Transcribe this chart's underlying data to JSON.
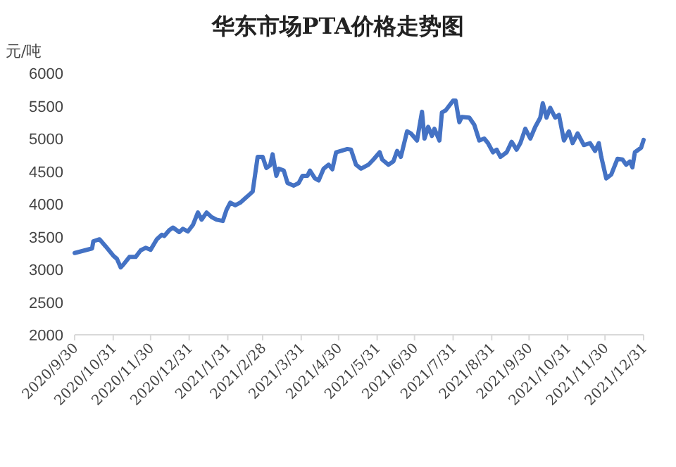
{
  "chart_data": {
    "type": "line",
    "title": "华东市场PTA价格走势图",
    "ylabel": "元/吨",
    "x": [
      "2020-09-30",
      "2020-10-14",
      "2020-10-15",
      "2020-10-20",
      "2020-10-25",
      "2020-10-31",
      "2020-11-03",
      "2020-11-06",
      "2020-11-08",
      "2020-11-13",
      "2020-11-18",
      "2020-11-22",
      "2020-11-26",
      "2020-11-30",
      "2020-12-05",
      "2020-12-09",
      "2020-12-11",
      "2020-12-15",
      "2020-12-18",
      "2020-12-23",
      "2020-12-26",
      "2020-12-30",
      "2021-01-03",
      "2021-01-07",
      "2021-01-10",
      "2021-01-14",
      "2021-01-18",
      "2021-01-22",
      "2021-01-27",
      "2021-01-30",
      "2021-02-02",
      "2021-02-06",
      "2021-02-10",
      "2021-02-16",
      "2021-02-20",
      "2021-02-24",
      "2021-02-28",
      "2021-03-03",
      "2021-03-06",
      "2021-03-08",
      "2021-03-11",
      "2021-03-13",
      "2021-03-17",
      "2021-03-20",
      "2021-03-25",
      "2021-03-29",
      "2021-04-01",
      "2021-04-05",
      "2021-04-07",
      "2021-04-11",
      "2021-04-14",
      "2021-04-18",
      "2021-04-22",
      "2021-04-25",
      "2021-04-28",
      "2021-05-07",
      "2021-05-10",
      "2021-05-14",
      "2021-05-18",
      "2021-05-24",
      "2021-05-28",
      "2021-06-02",
      "2021-06-04",
      "2021-06-09",
      "2021-06-13",
      "2021-06-16",
      "2021-06-19",
      "2021-06-24",
      "2021-06-27",
      "2021-07-02",
      "2021-07-06",
      "2021-07-08",
      "2021-07-11",
      "2021-07-14",
      "2021-07-16",
      "2021-07-20",
      "2021-07-22",
      "2021-07-25",
      "2021-07-31",
      "2021-08-02",
      "2021-08-05",
      "2021-08-07",
      "2021-08-13",
      "2021-08-17",
      "2021-08-21",
      "2021-08-25",
      "2021-08-28",
      "2021-09-01",
      "2021-09-04",
      "2021-09-07",
      "2021-09-12",
      "2021-09-16",
      "2021-09-20",
      "2021-09-23",
      "2021-09-27",
      "2021-10-01",
      "2021-10-05",
      "2021-10-09",
      "2021-10-11",
      "2021-10-14",
      "2021-10-17",
      "2021-10-21",
      "2021-10-24",
      "2021-10-28",
      "2021-11-01",
      "2021-11-04",
      "2021-11-08",
      "2021-11-13",
      "2021-11-18",
      "2021-11-22",
      "2021-11-25",
      "2021-11-27",
      "2021-12-01",
      "2021-12-05",
      "2021-12-10",
      "2021-12-14",
      "2021-12-17",
      "2021-12-20",
      "2021-12-22",
      "2021-12-24",
      "2021-12-29",
      "2021-12-31"
    ],
    "series": [
      {
        "color": "#4472c4",
        "values": [
          3250,
          3320,
          3430,
          3460,
          3350,
          3210,
          3160,
          3030,
          3070,
          3190,
          3190,
          3290,
          3330,
          3300,
          3460,
          3530,
          3510,
          3600,
          3640,
          3570,
          3620,
          3580,
          3680,
          3870,
          3760,
          3870,
          3800,
          3760,
          3740,
          3910,
          4020,
          3980,
          4020,
          4120,
          4190,
          4720,
          4720,
          4550,
          4590,
          4760,
          4430,
          4540,
          4510,
          4320,
          4280,
          4320,
          4430,
          4430,
          4510,
          4390,
          4360,
          4540,
          4600,
          4530,
          4790,
          4840,
          4830,
          4600,
          4540,
          4600,
          4680,
          4790,
          4680,
          4600,
          4650,
          4810,
          4720,
          5110,
          5080,
          4970,
          5410,
          5000,
          5180,
          5040,
          5150,
          4970,
          5400,
          5430,
          5580,
          5580,
          5250,
          5330,
          5320,
          5210,
          4970,
          5000,
          4930,
          4790,
          4830,
          4720,
          4790,
          4950,
          4830,
          4930,
          5150,
          5000,
          5180,
          5320,
          5540,
          5320,
          5470,
          5320,
          5360,
          4970,
          5110,
          4930,
          5080,
          4900,
          4930,
          4810,
          4930,
          4720,
          4390,
          4450,
          4690,
          4680,
          4600,
          4650,
          4560,
          4790,
          4860,
          4980
        ]
      }
    ],
    "xlim": [
      "2020-09-30",
      "2021-12-31"
    ],
    "xticks": [
      {
        "value": "2020-09-30",
        "label": "2020/9/30"
      },
      {
        "value": "2020-10-31",
        "label": "2020/10/31"
      },
      {
        "value": "2020-11-30",
        "label": "2020/11/30"
      },
      {
        "value": "2020-12-31",
        "label": "2020/12/31"
      },
      {
        "value": "2021-01-31",
        "label": "2021/1/31"
      },
      {
        "value": "2021-02-28",
        "label": "2021/2/28"
      },
      {
        "value": "2021-03-31",
        "label": "2021/3/31"
      },
      {
        "value": "2021-04-30",
        "label": "2021/4/30"
      },
      {
        "value": "2021-05-31",
        "label": "2021/5/31"
      },
      {
        "value": "2021-06-30",
        "label": "2021/6/30"
      },
      {
        "value": "2021-07-31",
        "label": "2021/7/31"
      },
      {
        "value": "2021-08-31",
        "label": "2021/8/31"
      },
      {
        "value": "2021-09-30",
        "label": "2021/9/30"
      },
      {
        "value": "2021-10-31",
        "label": "2021/10/31"
      },
      {
        "value": "2021-11-30",
        "label": "2021/11/30"
      },
      {
        "value": "2021-12-31",
        "label": "2021/12/31"
      }
    ],
    "ylim": [
      2000,
      6000
    ],
    "yticks": [
      2000,
      2500,
      3000,
      3500,
      4000,
      4500,
      5000,
      5500,
      6000
    ],
    "grid": false,
    "marker": "none",
    "line_style": "solid"
  }
}
